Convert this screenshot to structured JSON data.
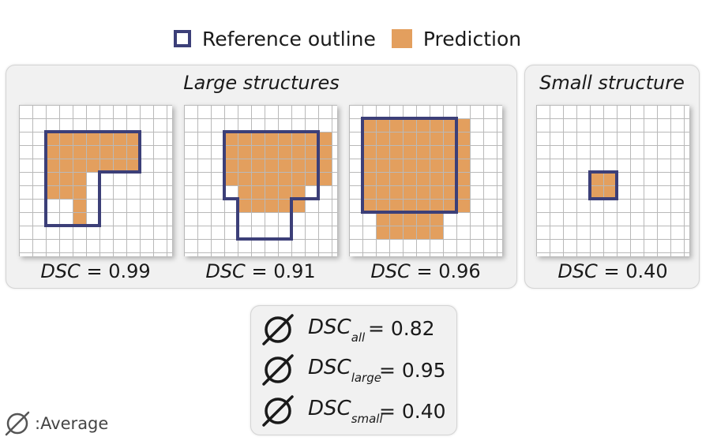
{
  "legend": {
    "reference_label": "Reference outline",
    "prediction_label": "Prediction"
  },
  "colors": {
    "reference": "#3c3f78",
    "prediction": "#e39f5e",
    "grid": "#b9b9b9"
  },
  "panels": {
    "large_title": "Large structures",
    "small_title": "Small structure"
  },
  "examples": [
    {
      "metric": "DSC",
      "equals": "=",
      "value": "0.99"
    },
    {
      "metric": "DSC",
      "equals": "=",
      "value": "0.91"
    },
    {
      "metric": "DSC",
      "equals": "=",
      "value": "0.96"
    },
    {
      "metric": "DSC",
      "equals": "=",
      "value": "0.40"
    }
  ],
  "averages": [
    {
      "metric": "DSC",
      "subscript": "all",
      "equals": "= 0.82"
    },
    {
      "metric": "DSC",
      "subscript": "large",
      "equals": "= 0.95"
    },
    {
      "metric": "DSC",
      "subscript": "small",
      "equals": "= 0.40"
    }
  ],
  "note": {
    "icon": "average-symbol-icon",
    "text": ":Average"
  }
}
